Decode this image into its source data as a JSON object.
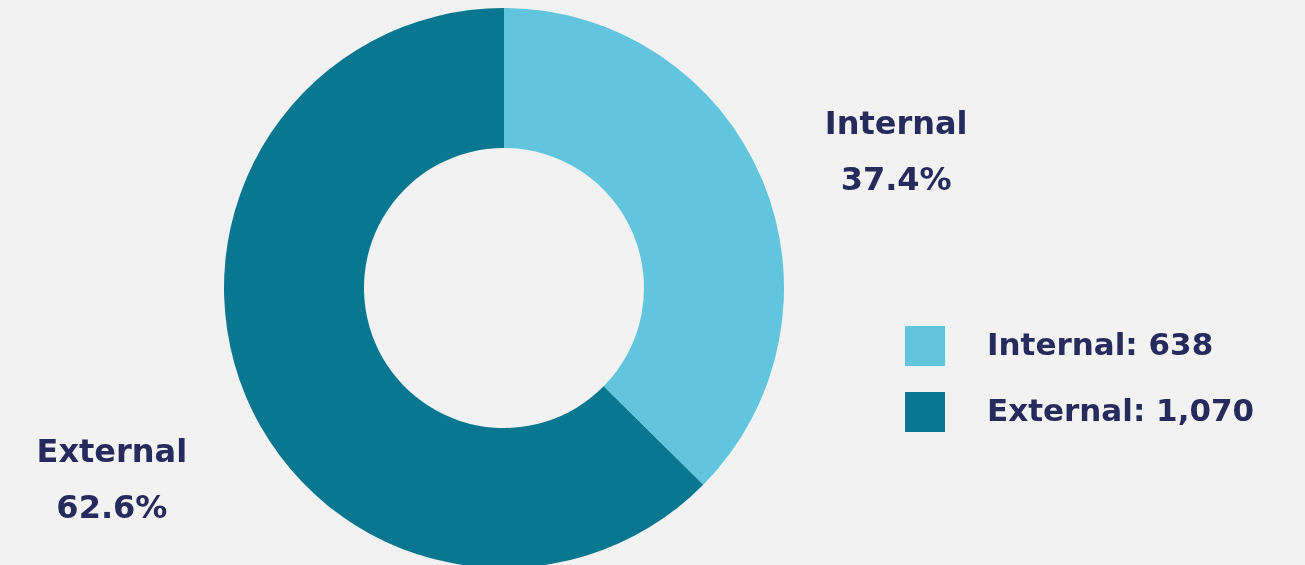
{
  "chart_data": {
    "type": "donut",
    "categories": [
      "Internal",
      "External"
    ],
    "values": [
      37.4,
      62.6
    ],
    "colors": [
      "#62c4dd",
      "#0a7791"
    ],
    "value_labels": [
      "37.4%",
      "62.6%"
    ],
    "annotations": [
      "Internal: 638",
      "External: 1,070"
    ]
  }
}
